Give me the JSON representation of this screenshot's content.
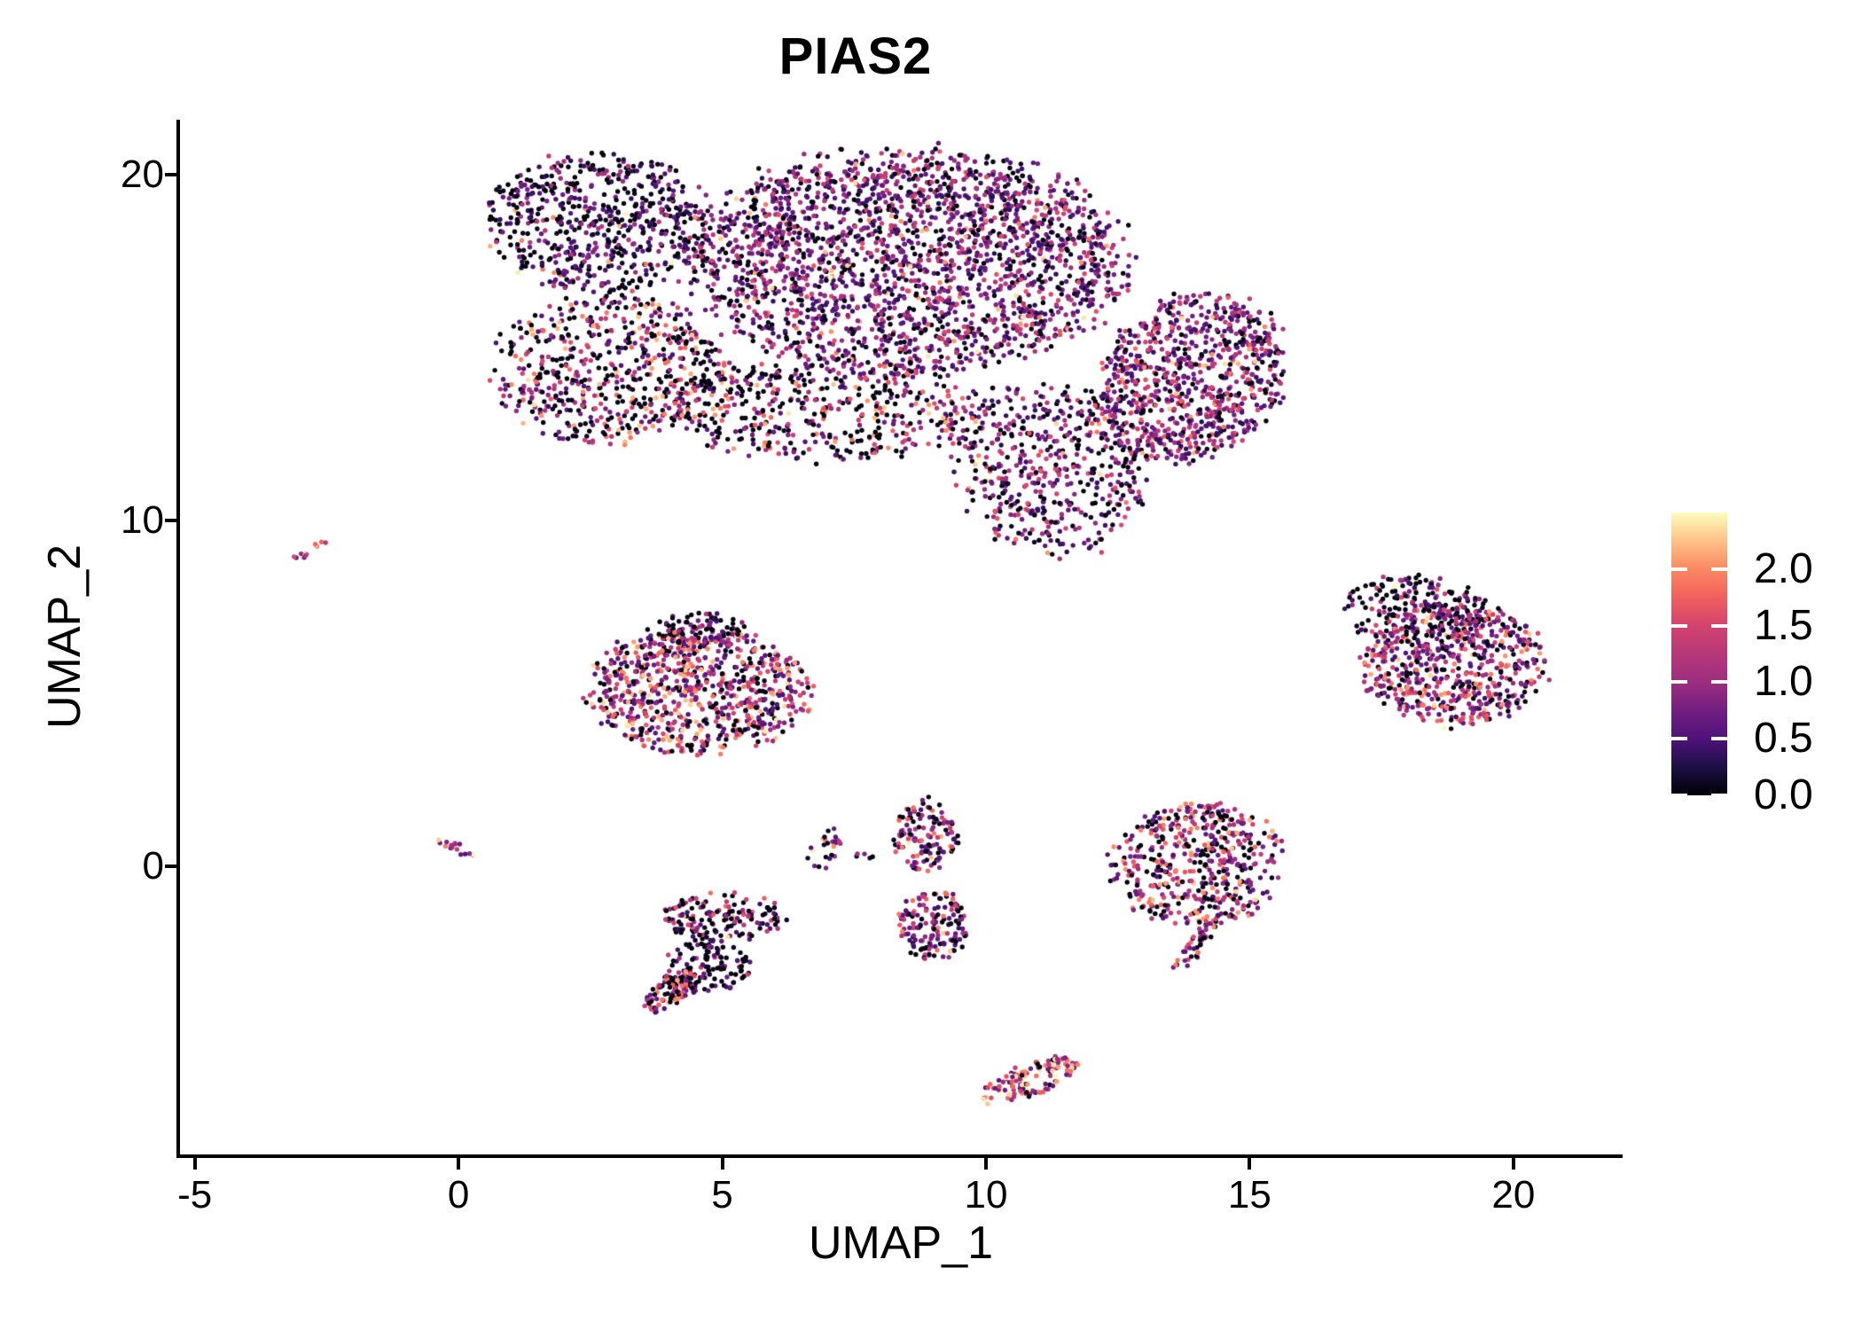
{
  "title": "PIAS2",
  "colors": {
    "background": "#FFFFFF",
    "axis": "#000000",
    "text": "#000000"
  },
  "chart_data": {
    "type": "scatter",
    "title": "PIAS2",
    "xlabel": "UMAP_1",
    "ylabel": "UMAP_2",
    "x_domain": [
      -5.28,
      22.07
    ],
    "y_domain": [
      -8.33,
      21.59
    ],
    "x_ticks": [
      -5,
      0,
      5,
      10,
      15,
      20
    ],
    "x_tick_labels": [
      "-5",
      "0",
      "5",
      "10",
      "15",
      "20"
    ],
    "y_ticks": [
      0,
      10,
      20
    ],
    "y_tick_labels": [
      "0",
      "10",
      "20"
    ],
    "grid": false,
    "legend_position": "right",
    "colorbar": {
      "vmin": 0.0,
      "vmax": 2.5,
      "ticks": [
        0.0,
        0.5,
        1.0,
        1.5,
        2.0
      ],
      "tick_labels": [
        "0.0",
        "0.5",
        "1.0",
        "1.5",
        "2.0"
      ]
    },
    "palette": {
      "name": "magma",
      "stops": [
        "#000004",
        "#1C1044",
        "#4F127B",
        "#721F81",
        "#9C2E7F",
        "#B73779",
        "#D3436E",
        "#F1605D",
        "#FB8861",
        "#FEC287",
        "#FCFDBF"
      ]
    },
    "point_radius_px": 2.7,
    "seed": 7,
    "clusters": [
      {
        "name": "main-top",
        "blobs": [
          {
            "cx": 2.7,
            "cy": 18.6,
            "rx": 2.1,
            "ry": 2.0,
            "rot": -15,
            "n": 620,
            "zero_frac": 0.48,
            "mean_expr": 0.75
          },
          {
            "cx": 8.5,
            "cy": 17.5,
            "rx": 4.1,
            "ry": 3.2,
            "rot": 0,
            "n": 2300,
            "zero_frac": 0.22,
            "mean_expr": 0.95
          },
          {
            "cx": 13.9,
            "cy": 14.1,
            "rx": 1.7,
            "ry": 2.5,
            "rot": -15,
            "n": 850,
            "zero_frac": 0.17,
            "mean_expr": 1.05
          },
          {
            "cx": 2.9,
            "cy": 14.4,
            "rx": 2.2,
            "ry": 2.2,
            "rot": 0,
            "n": 600,
            "zero_frac": 0.4,
            "mean_expr": 1.35
          },
          {
            "cx": 6.95,
            "cy": 13.25,
            "rx": 2.85,
            "ry": 1.55,
            "rot": 0,
            "n": 480,
            "zero_frac": 0.45,
            "mean_expr": 1.3
          },
          {
            "cx": 11.2,
            "cy": 11.5,
            "rx": 1.77,
            "ry": 2.55,
            "rot": 10,
            "n": 520,
            "zero_frac": 0.3,
            "mean_expr": 1.0
          }
        ]
      },
      {
        "name": "left-streak",
        "blobs": [
          {
            "cx": -2.85,
            "cy": 9.1,
            "rx": 0.5,
            "ry": 0.1,
            "rot": 42,
            "n": 12,
            "zero_frac": 0.08,
            "mean_expr": 1.7
          }
        ]
      },
      {
        "name": "mid-left",
        "blobs": [
          {
            "cx": 4.6,
            "cy": 6.85,
            "rx": 0.85,
            "ry": 0.5,
            "rot": 0,
            "n": 90,
            "zero_frac": 0.62,
            "mean_expr": 0.8
          },
          {
            "cx": 4.55,
            "cy": 5.1,
            "rx": 2.05,
            "ry": 1.85,
            "rot": 0,
            "n": 780,
            "zero_frac": 0.2,
            "mean_expr": 1.35
          }
        ]
      },
      {
        "name": "right",
        "blobs": [
          {
            "cx": 18.1,
            "cy": 7.4,
            "rx": 1.4,
            "ry": 1.0,
            "rot": -10,
            "n": 200,
            "zero_frac": 0.55,
            "mean_expr": 0.95
          },
          {
            "cx": 18.9,
            "cy": 5.9,
            "rx": 1.75,
            "ry": 1.8,
            "rot": 0,
            "n": 640,
            "zero_frac": 0.18,
            "mean_expr": 1.25
          }
        ]
      },
      {
        "name": "origin-streak",
        "blobs": [
          {
            "cx": 0.0,
            "cy": 0.5,
            "rx": 0.55,
            "ry": 0.14,
            "rot": -37,
            "n": 16,
            "zero_frac": 0.1,
            "mean_expr": 1.6
          }
        ]
      },
      {
        "name": "small-crescent",
        "blobs": [
          {
            "cx": 6.95,
            "cy": 0.5,
            "rx": 0.3,
            "ry": 0.65,
            "rot": -10,
            "n": 26,
            "zero_frac": 0.25,
            "mean_expr": 1.45
          },
          {
            "cx": 7.6,
            "cy": 0.3,
            "rx": 0.28,
            "ry": 0.18,
            "rot": 0,
            "n": 5,
            "zero_frac": 0.6,
            "mean_expr": 0.7
          }
        ]
      },
      {
        "name": "center-vertical",
        "blobs": [
          {
            "cx": 8.85,
            "cy": 0.9,
            "rx": 0.6,
            "ry": 1.05,
            "rot": 0,
            "n": 130,
            "zero_frac": 0.3,
            "mean_expr": 1.2
          },
          {
            "cx": 9.0,
            "cy": -1.7,
            "rx": 0.68,
            "ry": 1.05,
            "rot": 0,
            "n": 150,
            "zero_frac": 0.32,
            "mean_expr": 1.15
          }
        ]
      },
      {
        "name": "lower-mid",
        "blobs": [
          {
            "cx": 5.0,
            "cy": -1.45,
            "rx": 1.15,
            "ry": 0.7,
            "rot": 0,
            "n": 160,
            "zero_frac": 0.45,
            "mean_expr": 1.1
          },
          {
            "cx": 4.7,
            "cy": -2.9,
            "rx": 0.85,
            "ry": 0.75,
            "rot": 0,
            "n": 120,
            "zero_frac": 0.58,
            "mean_expr": 0.9
          },
          {
            "cx": 4.0,
            "cy": -3.6,
            "rx": 0.7,
            "ry": 0.32,
            "rot": 55,
            "n": 95,
            "zero_frac": 0.28,
            "mean_expr": 1.35
          }
        ]
      },
      {
        "name": "right-center",
        "blobs": [
          {
            "cx": 14.0,
            "cy": 0.05,
            "rx": 1.65,
            "ry": 1.8,
            "rot": 0,
            "n": 500,
            "zero_frac": 0.28,
            "mean_expr": 1.3
          },
          {
            "cx": 13.95,
            "cy": -2.35,
            "rx": 0.85,
            "ry": 0.18,
            "rot": 63,
            "n": 42,
            "zero_frac": 0.25,
            "mean_expr": 1.3
          }
        ]
      },
      {
        "name": "bottom",
        "blobs": [
          {
            "cx": 10.8,
            "cy": -6.2,
            "rx": 1.05,
            "ry": 0.42,
            "rot": 35,
            "n": 135,
            "zero_frac": 0.1,
            "mean_expr": 1.55
          }
        ]
      }
    ]
  }
}
